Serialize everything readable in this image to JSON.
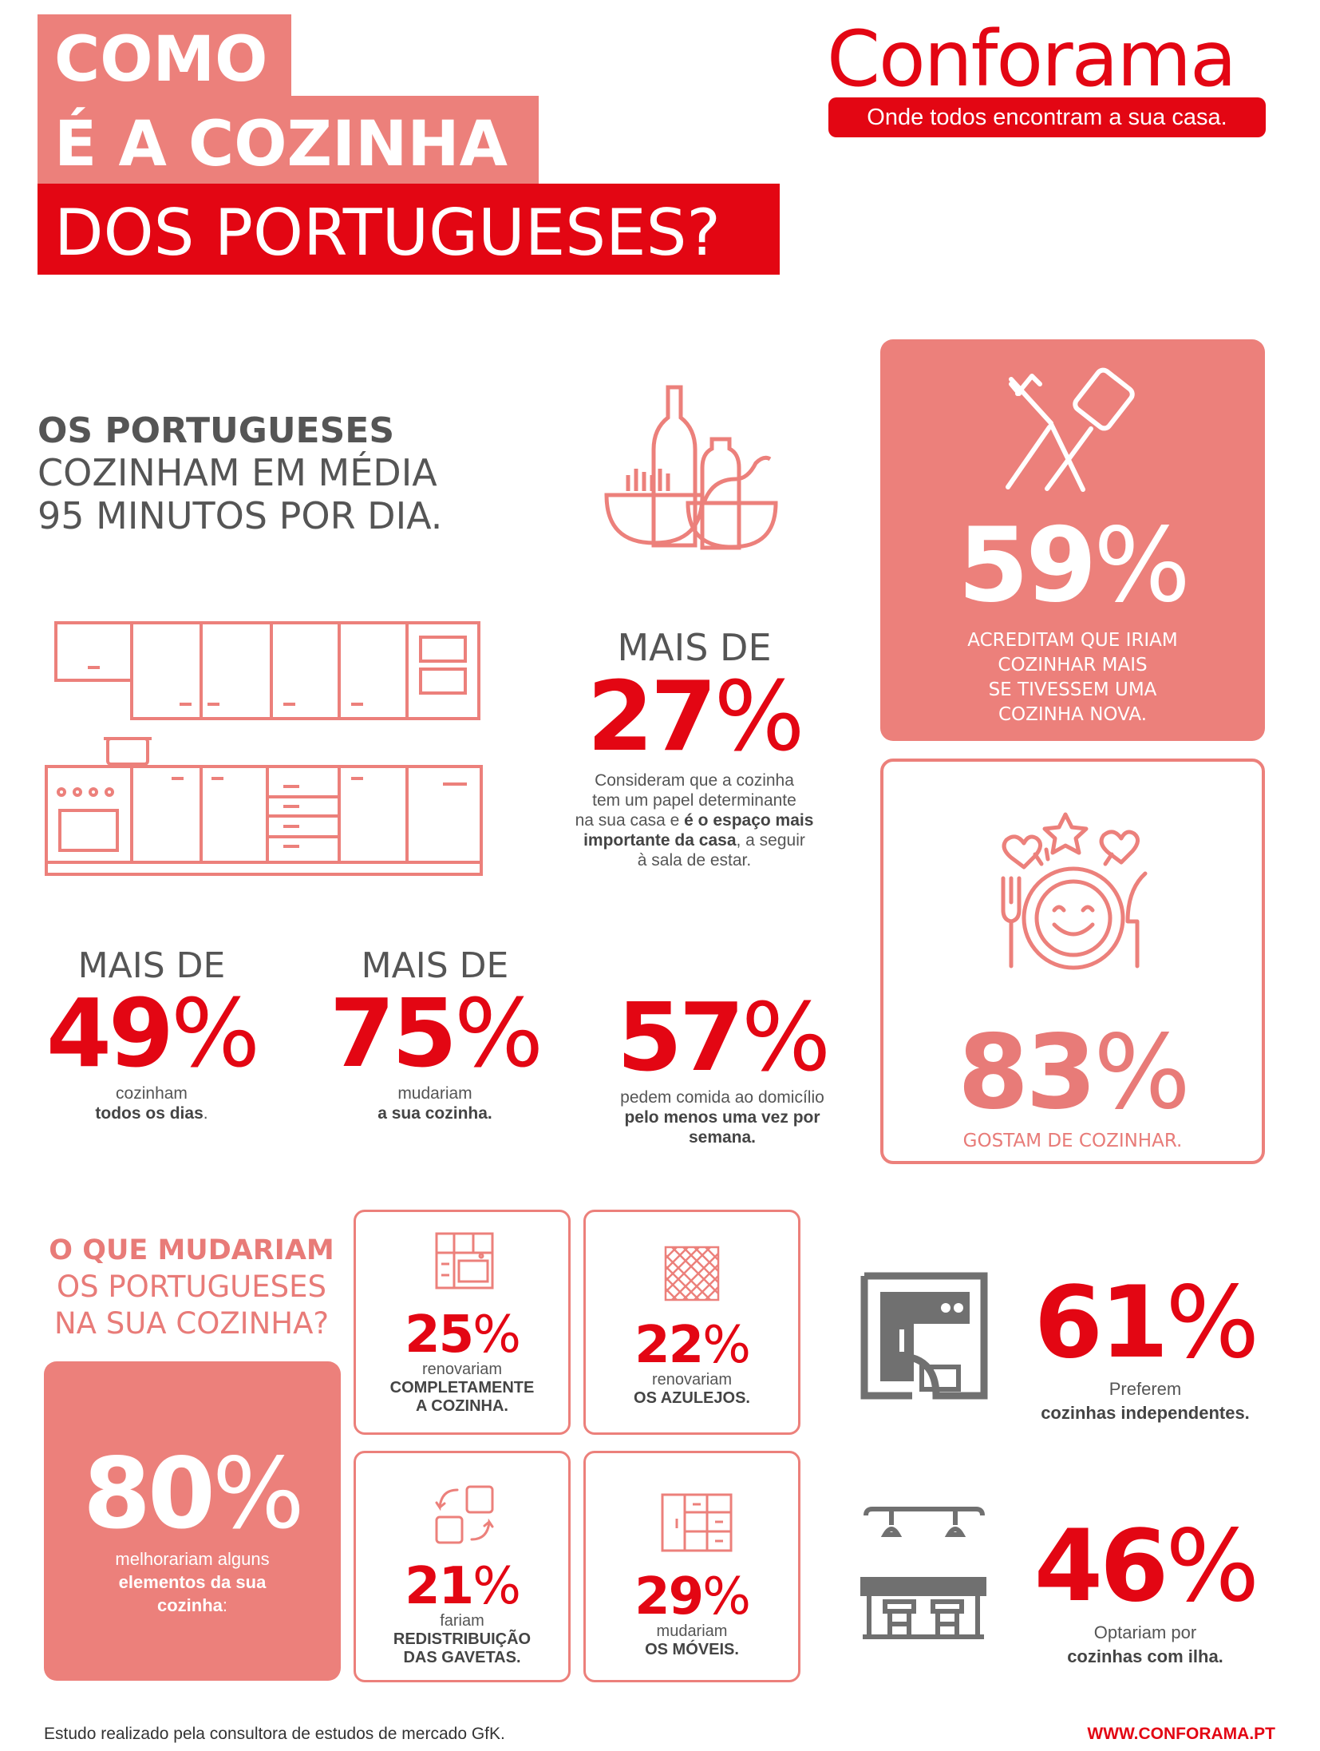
{
  "header": {
    "title_line1": "COMO",
    "title_line2": "É A COZINHA",
    "title_line3": "DOS PORTUGUESES?",
    "colors": {
      "red": "#e30613",
      "salmon": "#ec807b",
      "gray": "#555555"
    }
  },
  "brand": {
    "name": "Conforama",
    "tagline": "Onde todos encontram a sua casa."
  },
  "intro": {
    "line1": "OS PORTUGUESES",
    "line2": "COZINHAM EM MÉDIA",
    "line3": "95 MINUTOS POR DIA."
  },
  "stat_27": {
    "prefix": "MAIS DE",
    "number": "27",
    "pct": "%",
    "line1": "Consideram que a cozinha",
    "line2": "tem um papel determinante",
    "line3a": "na sua casa e ",
    "line3b": "é o espaço mais",
    "line4a": "importante da casa",
    "line4b": ", a seguir",
    "line5": "à sala de estar."
  },
  "stat_59": {
    "number": "59",
    "pct": "%",
    "line1": "ACREDITAM QUE IRIAM",
    "line2": "COZINHAR MAIS",
    "line3": "SE TIVESSEM UMA",
    "line4": "COZINHA NOVA."
  },
  "stat_83": {
    "number": "83",
    "pct": "%",
    "caption": "GOSTAM DE COZINHAR."
  },
  "stat_49": {
    "prefix": "MAIS DE",
    "number": "49",
    "pct": "%",
    "line1": "cozinham",
    "line2": "todos os dias",
    "line2_end": "."
  },
  "stat_75": {
    "prefix": "MAIS DE",
    "number": "75",
    "pct": "%",
    "line1": "mudariam",
    "line2": "a sua cozinha."
  },
  "stat_57": {
    "number": "57",
    "pct": "%",
    "line1": "pedem comida ao domicílio",
    "line2": "pelo menos uma vez por",
    "line3": "semana."
  },
  "changes": {
    "heading1": "O QUE MUDARIAM",
    "heading2": "OS PORTUGUESES",
    "heading3": "NA SUA COZINHA?"
  },
  "stat_80": {
    "number": "80",
    "pct": "%",
    "line1": "melhorariam alguns",
    "line2": "elementos da sua",
    "line3": "cozinha",
    "line3_end": ":"
  },
  "stat_25": {
    "number": "25",
    "pct": "%",
    "line1": "renovariam",
    "line2": "COMPLETAMENTE",
    "line3": "A COZINHA."
  },
  "stat_22": {
    "number": "22",
    "pct": "%",
    "line1": "renovariam",
    "line2": "OS AZULEJOS."
  },
  "stat_21": {
    "number": "21",
    "pct": "%",
    "line1": "fariam",
    "line2": "REDISTRIBUIÇÃO",
    "line3": "DAS GAVETAS."
  },
  "stat_29": {
    "number": "29",
    "pct": "%",
    "line1": "mudariam",
    "line2": "OS MÓVEIS."
  },
  "stat_61": {
    "number": "61",
    "pct": "%",
    "line1": "Preferem",
    "line2": "cozinhas independentes."
  },
  "stat_46": {
    "number": "46",
    "pct": "%",
    "line1": "Optariam por",
    "line2": "cozinhas com ilha."
  },
  "footer": {
    "source": "Estudo realizado pela consultora de estudos de mercado GfK.",
    "url": "WWW.CONFORAMA.PT"
  },
  "icons": [
    "kitchen-food-icon",
    "cabinets-icon",
    "utensils-icon",
    "happy-plate-icon",
    "kitchen-unit-icon",
    "tiles-icon",
    "rearrange-icon",
    "furniture-icon",
    "independent-kitchen-icon",
    "island-kitchen-icon"
  ]
}
